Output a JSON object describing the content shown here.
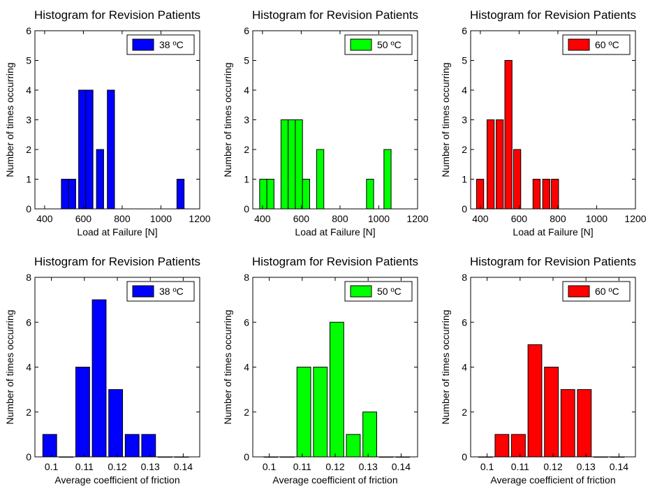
{
  "chart_data": [
    {
      "type": "bar",
      "title": "Histogram for Revision Patients",
      "xlabel": "Load at Failure [N]",
      "ylabel": "Number of times occurring",
      "xlim": [
        350,
        1200
      ],
      "ylim": [
        0,
        6
      ],
      "xticks": [
        400,
        600,
        800,
        1000,
        1200
      ],
      "yticks": [
        0,
        1,
        2,
        3,
        4,
        5,
        6
      ],
      "bar_width": 37,
      "series": [
        {
          "name": "38 ºC",
          "color": "#0000ff",
          "x": [
            505,
            542,
            594,
            631,
            686,
            742,
            1101
          ],
          "values": [
            1,
            1,
            4,
            4,
            2,
            4,
            1
          ]
        }
      ],
      "legend": "top-right",
      "grid": false
    },
    {
      "type": "bar",
      "title": "Histogram for Revision Patients",
      "xlabel": "Load at Failure [N]",
      "ylabel": "Number of times occurring",
      "xlim": [
        350,
        1200
      ],
      "ylim": [
        0,
        6
      ],
      "xticks": [
        400,
        600,
        800,
        1000,
        1200
      ],
      "yticks": [
        0,
        1,
        2,
        3,
        4,
        5,
        6
      ],
      "bar_width": 37,
      "series": [
        {
          "name": "50 ºC",
          "color": "#00ff00",
          "x": [
            404,
            441,
            514,
            551,
            588,
            625,
            698,
            955,
            1045
          ],
          "values": [
            1,
            1,
            3,
            3,
            3,
            1,
            2,
            1,
            2
          ]
        }
      ],
      "legend": "top-right",
      "grid": false
    },
    {
      "type": "bar",
      "title": "Histogram for Revision Patients",
      "xlabel": "Load at Failure [N]",
      "ylabel": "Number of times occurring",
      "xlim": [
        350,
        1200
      ],
      "ylim": [
        0,
        6
      ],
      "xticks": [
        400,
        600,
        800,
        1000,
        1200
      ],
      "yticks": [
        0,
        1,
        2,
        3,
        4,
        5,
        6
      ],
      "bar_width": 37,
      "series": [
        {
          "name": "60 ºC",
          "color": "#ff0000",
          "x": [
            399,
            453,
            500,
            545,
            590,
            690,
            740,
            785
          ],
          "values": [
            1,
            3,
            3,
            5,
            2,
            1,
            1,
            1
          ]
        }
      ],
      "legend": "top-right",
      "grid": false
    },
    {
      "type": "bar",
      "title": "Histogram for Revision Patients",
      "xlabel": "Average coefficient of friction",
      "ylabel": "Number of times occurring",
      "xlim": [
        0.095,
        0.145
      ],
      "ylim": [
        0,
        8
      ],
      "xticks": [
        0.1,
        0.11,
        0.12,
        0.13,
        0.14
      ],
      "xtick_labels": [
        "0.1",
        "0.11",
        "0.12",
        "0.13",
        "0.14"
      ],
      "yticks": [
        0,
        2,
        4,
        6,
        8
      ],
      "bar_width": 0.0042,
      "series": [
        {
          "name": "38 ºC",
          "color": "#0000ff",
          "x": [
            0.0995,
            0.1045,
            0.1095,
            0.1145,
            0.1195,
            0.1245,
            0.1295,
            0.1345,
            0.1395
          ],
          "values": [
            1,
            0,
            4,
            7,
            3,
            1,
            1,
            0,
            0
          ]
        }
      ],
      "legend": "top-right",
      "grid": false
    },
    {
      "type": "bar",
      "title": "Histogram for Revision Patients",
      "xlabel": "Average coefficient of friction",
      "ylabel": "Number of times occurring",
      "xlim": [
        0.095,
        0.145
      ],
      "ylim": [
        0,
        8
      ],
      "xticks": [
        0.1,
        0.11,
        0.12,
        0.13,
        0.14
      ],
      "xtick_labels": [
        "0.1",
        "0.11",
        "0.12",
        "0.13",
        "0.14"
      ],
      "yticks": [
        0,
        2,
        4,
        6,
        8
      ],
      "bar_width": 0.0042,
      "series": [
        {
          "name": "50 ºC",
          "color": "#00ff00",
          "x": [
            0.1005,
            0.1055,
            0.1105,
            0.1155,
            0.1205,
            0.1255,
            0.1305,
            0.1355,
            0.1405
          ],
          "values": [
            0,
            0,
            4,
            4,
            6,
            1,
            2,
            0,
            0
          ]
        }
      ],
      "legend": "top-right",
      "grid": false
    },
    {
      "type": "bar",
      "title": "Histogram for Revision Patients",
      "xlabel": "Average coefficient of friction",
      "ylabel": "Number of times occurring",
      "xlim": [
        0.095,
        0.145
      ],
      "ylim": [
        0,
        8
      ],
      "xticks": [
        0.1,
        0.11,
        0.12,
        0.13,
        0.14
      ],
      "xtick_labels": [
        "0.1",
        "0.11",
        "0.12",
        "0.13",
        "0.14"
      ],
      "yticks": [
        0,
        2,
        4,
        6,
        8
      ],
      "bar_width": 0.0042,
      "series": [
        {
          "name": "60 ºC",
          "color": "#ff0000",
          "x": [
            0.0995,
            0.1045,
            0.1095,
            0.1145,
            0.1195,
            0.1245,
            0.1295,
            0.1345,
            0.1395
          ],
          "values": [
            0,
            1,
            1,
            5,
            4,
            3,
            3,
            0,
            0
          ]
        }
      ],
      "legend": "top-right",
      "grid": false
    }
  ]
}
